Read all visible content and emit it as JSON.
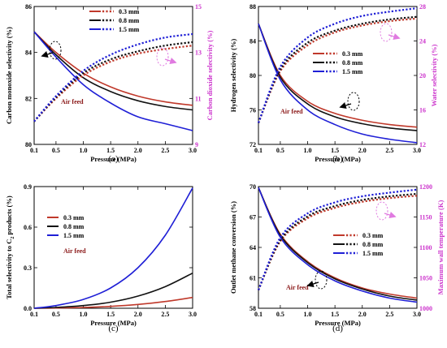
{
  "colors": {
    "0.3 mm": "#c0392b",
    "0.8 mm": "#111111",
    "1.5 mm": "#1f1fd6",
    "right_axis": "#cc33cc",
    "annotation_text": "#8b1a1a",
    "arrow_black": "#000000",
    "arrow_right": "#e07ae0"
  },
  "chart_data": [
    {
      "type": "line",
      "panel_label": "(a)",
      "xlabel": "Pressure (MPa)",
      "ylabel": "Carbon monoxide selectivity (%)",
      "y2label": "Carbon dioxide selectivity (%)",
      "xlim": [
        0.1,
        3.0
      ],
      "ylim": [
        80,
        86
      ],
      "y2lim": [
        9,
        15
      ],
      "xticks": [
        "0.1",
        "0.5",
        "1.0",
        "1.5",
        "2.0",
        "2.5",
        "3.0"
      ],
      "yticks": [
        "80",
        "82",
        "84",
        "86"
      ],
      "y2ticks": [
        "9",
        "11",
        "13",
        "15"
      ],
      "annotation": "Air feed",
      "legend": [
        "0.3 mm",
        "0.8 mm",
        "1.5 mm"
      ],
      "x": [
        0.1,
        0.5,
        1.0,
        1.5,
        2.0,
        2.5,
        3.0
      ],
      "series": [
        {
          "name": "0.3 mm",
          "axis": "left",
          "style": "solid",
          "values": [
            84.9,
            84.0,
            83.1,
            82.5,
            82.1,
            81.85,
            81.7
          ]
        },
        {
          "name": "0.8 mm",
          "axis": "left",
          "style": "solid",
          "values": [
            84.9,
            83.9,
            82.9,
            82.3,
            81.9,
            81.65,
            81.5
          ]
        },
        {
          "name": "1.5 mm",
          "axis": "left",
          "style": "solid",
          "values": [
            84.9,
            83.8,
            82.6,
            81.8,
            81.2,
            80.9,
            80.6
          ]
        },
        {
          "name": "0.3 mm",
          "axis": "right",
          "style": "dotted",
          "values": [
            10.0,
            11.0,
            12.0,
            12.6,
            12.95,
            13.15,
            13.3
          ]
        },
        {
          "name": "0.8 mm",
          "axis": "right",
          "style": "dotted",
          "values": [
            10.0,
            11.05,
            12.1,
            12.7,
            13.05,
            13.3,
            13.45
          ]
        },
        {
          "name": "1.5 mm",
          "axis": "right",
          "style": "dotted",
          "values": [
            10.0,
            11.1,
            12.2,
            12.9,
            13.35,
            13.65,
            13.8
          ]
        }
      ]
    },
    {
      "type": "line",
      "panel_label": "(b)",
      "xlabel": "Pressure (MPa)",
      "ylabel": "Hydrogen selectivity (%)",
      "y2label": "Water selectivity (%)",
      "xlim": [
        0.1,
        3.0
      ],
      "ylim": [
        72,
        88
      ],
      "y2lim": [
        12,
        28
      ],
      "xticks": [
        "0.1",
        "0.5",
        "1.0",
        "1.5",
        "2.0",
        "2.5",
        "3.0"
      ],
      "yticks": [
        "72",
        "76",
        "80",
        "84",
        "88"
      ],
      "y2ticks": [
        "12",
        "16",
        "20",
        "24",
        "28"
      ],
      "annotation": "Air feed",
      "legend": [
        "0.3 mm",
        "0.8 mm",
        "1.5 mm"
      ],
      "x": [
        0.1,
        0.5,
        1.0,
        1.5,
        2.0,
        2.5,
        3.0
      ],
      "series": [
        {
          "name": "0.3 mm",
          "axis": "left",
          "style": "solid",
          "values": [
            86.0,
            80.0,
            77.0,
            75.6,
            74.8,
            74.3,
            74.0
          ]
        },
        {
          "name": "0.8 mm",
          "axis": "left",
          "style": "solid",
          "values": [
            86.0,
            79.8,
            76.7,
            75.2,
            74.4,
            73.9,
            73.6
          ]
        },
        {
          "name": "1.5 mm",
          "axis": "left",
          "style": "solid",
          "values": [
            86.0,
            79.5,
            76.0,
            74.3,
            73.2,
            72.6,
            72.2
          ]
        },
        {
          "name": "0.3 mm",
          "axis": "right",
          "style": "dotted",
          "values": [
            14.5,
            20.5,
            23.5,
            25.0,
            25.8,
            26.3,
            26.6
          ]
        },
        {
          "name": "0.8 mm",
          "axis": "right",
          "style": "dotted",
          "values": [
            14.5,
            20.7,
            23.8,
            25.2,
            26.0,
            26.5,
            26.8
          ]
        },
        {
          "name": "1.5 mm",
          "axis": "right",
          "style": "dotted",
          "values": [
            14.5,
            21.0,
            24.4,
            26.0,
            26.9,
            27.4,
            27.8
          ]
        }
      ]
    },
    {
      "type": "line",
      "panel_label": "(c)",
      "xlabel": "Pressure (MPa)",
      "ylabel": "Total selectivity to C2 products (%)",
      "xlim": [
        0.1,
        3.0
      ],
      "ylim": [
        0.0,
        0.9
      ],
      "xticks": [
        "0.1",
        "0.5",
        "1.0",
        "1.5",
        "2.0",
        "2.5",
        "3.0"
      ],
      "yticks": [
        "0.0",
        "0.3",
        "0.6",
        "0.9"
      ],
      "annotation": "Air feed",
      "legend": [
        "0.3 mm",
        "0.8 mm",
        "1.5 mm"
      ],
      "x": [
        0.1,
        0.5,
        1.0,
        1.5,
        2.0,
        2.5,
        3.0
      ],
      "series": [
        {
          "name": "0.3 mm",
          "axis": "left",
          "style": "solid",
          "values": [
            0.0,
            0.002,
            0.006,
            0.014,
            0.028,
            0.05,
            0.08
          ]
        },
        {
          "name": "0.8 mm",
          "axis": "left",
          "style": "solid",
          "values": [
            0.0,
            0.006,
            0.02,
            0.045,
            0.09,
            0.16,
            0.26
          ]
        },
        {
          "name": "1.5 mm",
          "axis": "left",
          "style": "solid",
          "values": [
            0.0,
            0.02,
            0.065,
            0.15,
            0.3,
            0.54,
            0.89
          ]
        }
      ]
    },
    {
      "type": "line",
      "panel_label": "(d)",
      "xlabel": "Pressure (MPa)",
      "ylabel": "Outlet methane conversion (%)",
      "y2label": "Maximum wall temperature (K)",
      "xlim": [
        0.1,
        3.0
      ],
      "ylim": [
        58,
        70
      ],
      "y2lim": [
        1000,
        1200
      ],
      "xticks": [
        "0.1",
        "0.5",
        "1.0",
        "1.5",
        "2.0",
        "2.5",
        "3.0"
      ],
      "yticks": [
        "58",
        "61",
        "64",
        "67",
        "70"
      ],
      "y2ticks": [
        "1000",
        "1050",
        "1100",
        "1150",
        "1200"
      ],
      "annotation": "Air feed",
      "legend": [
        "0.3 mm",
        "0.8 mm",
        "1.5 mm"
      ],
      "x": [
        0.1,
        0.5,
        1.0,
        1.5,
        2.0,
        2.5,
        3.0
      ],
      "series": [
        {
          "name": "0.3 mm",
          "axis": "left",
          "style": "solid",
          "values": [
            69.9,
            65.3,
            62.6,
            61.0,
            60.0,
            59.4,
            59.0
          ]
        },
        {
          "name": "0.8 mm",
          "axis": "left",
          "style": "solid",
          "values": [
            69.9,
            65.2,
            62.5,
            60.9,
            59.9,
            59.2,
            58.8
          ]
        },
        {
          "name": "1.5 mm",
          "axis": "left",
          "style": "solid",
          "values": [
            69.9,
            65.0,
            62.3,
            60.7,
            59.7,
            59.0,
            58.6
          ]
        },
        {
          "name": "0.3 mm",
          "axis": "right",
          "style": "dotted",
          "values": [
            1030,
            1110,
            1148,
            1165,
            1175,
            1181,
            1185
          ]
        },
        {
          "name": "0.8 mm",
          "axis": "right",
          "style": "dotted",
          "values": [
            1030,
            1112,
            1151,
            1168,
            1178,
            1184,
            1188
          ]
        },
        {
          "name": "1.5 mm",
          "axis": "right",
          "style": "dotted",
          "values": [
            1030,
            1116,
            1156,
            1174,
            1184,
            1190,
            1195
          ]
        }
      ]
    }
  ]
}
